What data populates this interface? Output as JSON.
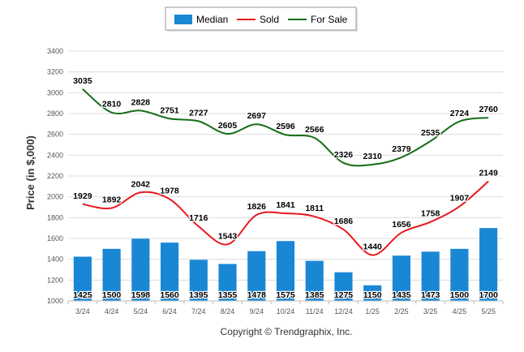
{
  "chart_data": {
    "type": "bar",
    "categories": [
      "3/24",
      "4/24",
      "5/24",
      "6/24",
      "7/24",
      "8/24",
      "9/24",
      "10/24",
      "11/24",
      "12/24",
      "1/25",
      "2/25",
      "3/25",
      "4/25",
      "5/25"
    ],
    "series": [
      {
        "name": "Median",
        "type": "bar",
        "color": "#1a87d5",
        "values": [
          1425,
          1500,
          1598,
          1560,
          1395,
          1355,
          1478,
          1575,
          1385,
          1275,
          1150,
          1435,
          1473,
          1500,
          1700
        ]
      },
      {
        "name": "Sold",
        "type": "line",
        "color": "#e8181d",
        "values": [
          1929,
          1892,
          2042,
          1978,
          1716,
          1543,
          1826,
          1841,
          1811,
          1686,
          1440,
          1656,
          1758,
          1907,
          2149
        ],
        "labels": [
          "1929",
          "1892",
          "2042",
          "1978",
          "1716",
          "1543",
          "1826",
          "1841",
          "1811",
          "1686",
          "1440",
          "1656",
          "1758",
          "1907",
          "2149"
        ]
      },
      {
        "name": "For Sale",
        "type": "line",
        "color": "#136d15",
        "values": [
          3035,
          2810,
          2828,
          2751,
          2727,
          2605,
          2697,
          2596,
          2566,
          2326,
          2310,
          2379,
          2535,
          2724,
          2760
        ]
      }
    ],
    "ylabel": "Price (in $,000)",
    "ylim": [
      1000,
      3400
    ],
    "yticks": [
      "1000",
      "1200",
      "1400",
      "1600",
      "1800",
      "2000",
      "2200",
      "2400",
      "2600",
      "2800",
      "3000",
      "3200",
      "3400"
    ],
    "grid": true,
    "legend_placement": "top-center",
    "footer": "Copyright © Trendgraphix, Inc."
  }
}
